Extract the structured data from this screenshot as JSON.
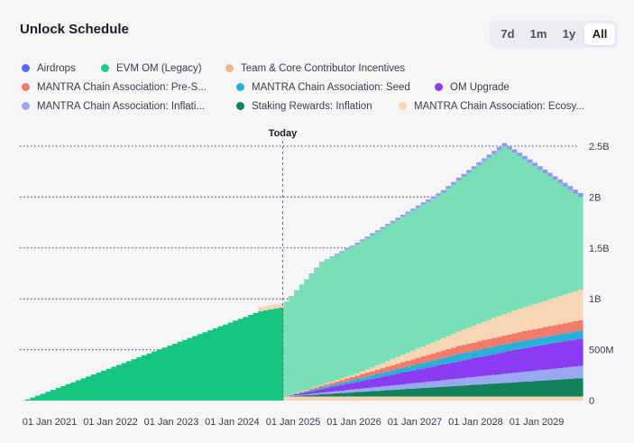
{
  "header": {
    "title": "Unlock Schedule"
  },
  "range_buttons": [
    {
      "label": "7d",
      "active": false
    },
    {
      "label": "1m",
      "active": false
    },
    {
      "label": "1y",
      "active": false
    },
    {
      "label": "All",
      "active": true
    }
  ],
  "legend": [
    {
      "label": "Airdrops",
      "color": "#4f6ff5"
    },
    {
      "label": "EVM OM (Legacy)",
      "color": "#22c98a"
    },
    {
      "label": "Team & Core Contributor Incentives",
      "color": "#f2b782"
    },
    {
      "label": "MANTRA Chain Association: Pre-S...",
      "color": "#f27b6b"
    },
    {
      "label": "MANTRA Chain Association: Seed",
      "color": "#2ab0d6"
    },
    {
      "label": "OM Upgrade",
      "color": "#8a3df0"
    },
    {
      "label": "MANTRA Chain Association: Inflati...",
      "color": "#9aa8f2"
    },
    {
      "label": "Staking Rewards: Inflation",
      "color": "#12825a"
    },
    {
      "label": "MANTRA Chain Association: Ecosy...",
      "color": "#f7d6b4"
    }
  ],
  "chart_data": {
    "type": "area",
    "stacked": true,
    "title": "Unlock Schedule",
    "x_ticks": [
      "01 Jan 2021",
      "01 Jan 2022",
      "01 Jan 2023",
      "01 Jan 2024",
      "01 Jan 2025",
      "01 Jan 2026",
      "01 Jan 2027",
      "01 Jan 2028",
      "01 Jan 2029"
    ],
    "y_ticks": [
      "0",
      "500M",
      "1B",
      "1.5B",
      "2B",
      "2.5B"
    ],
    "ylim": [
      0,
      2500000000
    ],
    "xlim": [
      "2020-07-01",
      "2029-09-01"
    ],
    "today": {
      "label": "Today",
      "date": "2024-10-25"
    },
    "grid": "horizontal-dotted",
    "series": [
      {
        "name": "EVM OM (Legacy)",
        "color": "#22c98a",
        "points": [
          [
            "2020-07-15",
            0
          ],
          [
            "2024-06-01",
            880000000
          ],
          [
            "2024-10-25",
            920000000
          ]
        ]
      },
      {
        "name": "Team & Core Contributor Incentives",
        "color": "#f7d6b4",
        "points": [
          [
            "2024-06-01",
            40000000
          ],
          [
            "2029-09-01",
            40000000
          ]
        ]
      },
      {
        "name": "Staking Rewards: Inflation",
        "color": "#12825a",
        "points": [
          [
            "2024-10-25",
            0
          ],
          [
            "2029-09-01",
            180000000
          ]
        ]
      },
      {
        "name": "MANTRA Chain Association: Inflati...",
        "color": "#9aa8f2",
        "points": [
          [
            "2024-10-25",
            0
          ],
          [
            "2029-09-01",
            120000000
          ]
        ]
      },
      {
        "name": "OM Upgrade",
        "color": "#8a3df0",
        "points": [
          [
            "2024-10-25",
            0
          ],
          [
            "2028-09-01",
            230000000
          ],
          [
            "2029-09-01",
            270000000
          ]
        ]
      },
      {
        "name": "MANTRA Chain Association: Seed",
        "color": "#2ab0d6",
        "points": [
          [
            "2024-10-25",
            0
          ],
          [
            "2027-09-01",
            70000000
          ],
          [
            "2029-09-01",
            80000000
          ]
        ]
      },
      {
        "name": "MANTRA Chain Association: Pre-S...",
        "color": "#f27b6b",
        "points": [
          [
            "2024-10-25",
            0
          ],
          [
            "2027-09-01",
            80000000
          ],
          [
            "2029-09-01",
            100000000
          ]
        ]
      },
      {
        "name": "MANTRA Chain Association: Ecosy...",
        "color": "#f7d6b4",
        "points": [
          [
            "2024-10-25",
            0
          ],
          [
            "2026-01-01",
            20000000
          ],
          [
            "2027-06-01",
            120000000
          ],
          [
            "2028-06-01",
            210000000
          ],
          [
            "2029-09-01",
            300000000
          ]
        ]
      },
      {
        "name": "Airdrops",
        "color": "#79dfb6",
        "points": [
          [
            "2024-10-25",
            920000000
          ],
          [
            "2025-06-01",
            1200000000
          ],
          [
            "2026-06-01",
            1320000000
          ],
          [
            "2027-06-01",
            1430000000
          ],
          [
            "2028-06-01",
            1650000000
          ],
          [
            "2029-09-01",
            910000000
          ]
        ]
      },
      {
        "name": "Airdrops (top band)",
        "color": "#8f9bf0",
        "points": [
          [
            "2024-10-25",
            0
          ],
          [
            "2026-01-01",
            15000000
          ],
          [
            "2029-09-01",
            40000000
          ]
        ]
      }
    ]
  }
}
